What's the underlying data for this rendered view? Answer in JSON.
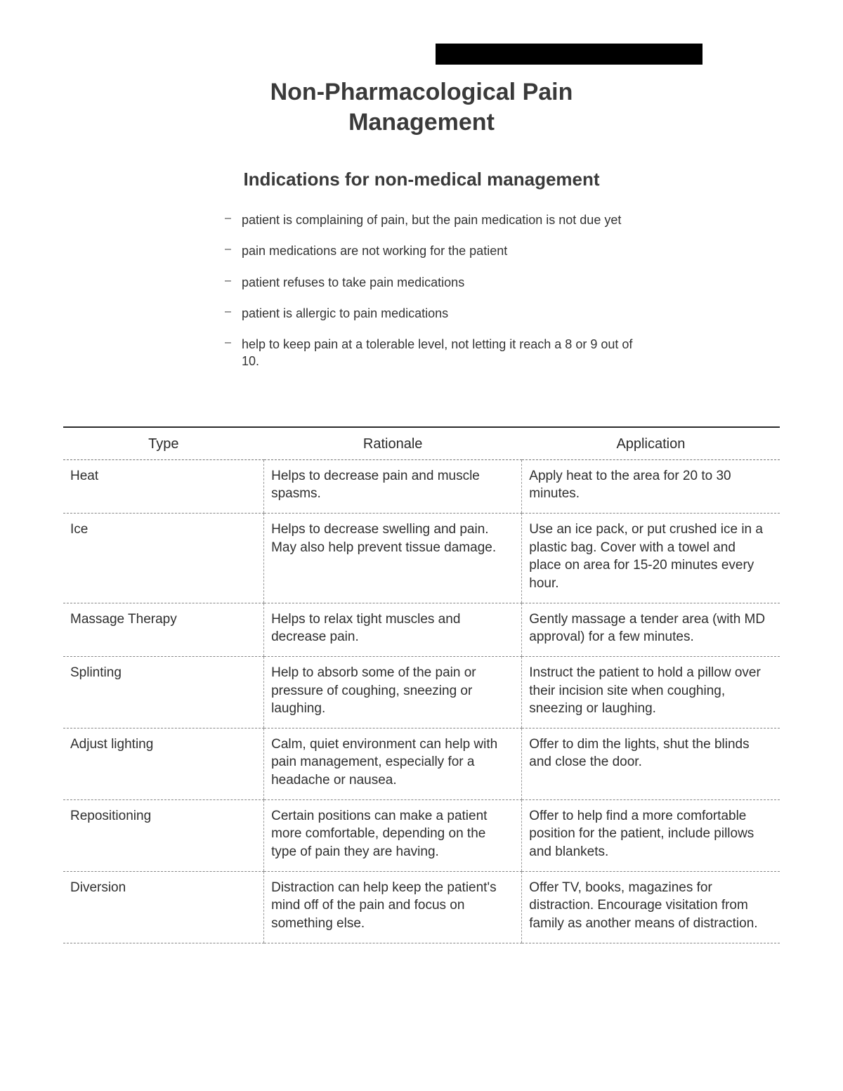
{
  "title_line1": "Non-Pharmacological Pain",
  "title_line2": "Management",
  "subtitle": "Indications for non-medical management",
  "bullets": [
    "patient is complaining of pain, but the pain medication is not due yet",
    "pain medications are not working for the patient",
    "patient refuses to take pain medications",
    "patient is allergic to pain medications",
    "help to keep pain at a tolerable level, not letting it reach a 8 or 9 out of 10."
  ],
  "table": {
    "columns": [
      "Type",
      "Rationale",
      "Application"
    ],
    "rows": [
      {
        "type": "Heat",
        "rationale": "Helps to decrease pain and muscle spasms.",
        "application": "Apply heat to the area for 20 to 30 minutes."
      },
      {
        "type": "Ice",
        "rationale": "Helps to decrease swelling and pain. May also help prevent tissue damage.",
        "application": "Use an ice pack, or put crushed ice in a plastic bag. Cover with a towel and place on area for 15-20 minutes every hour."
      },
      {
        "type": "Massage Therapy",
        "rationale": "Helps to relax tight muscles and decrease pain.",
        "application": "Gently massage a tender area (with MD approval) for a few minutes."
      },
      {
        "type": "Splinting",
        "rationale": "Help to absorb some of the pain or pressure of coughing, sneezing or laughing.",
        "application": "Instruct the patient to hold a pillow over their incision site when coughing, sneezing or laughing."
      },
      {
        "type": "Adjust lighting",
        "rationale": "Calm, quiet environment can help with pain management, especially for a headache or nausea.",
        "application": "Offer to dim the lights, shut the blinds and close the door."
      },
      {
        "type": "Repositioning",
        "rationale": "Certain positions can make a patient more comfortable, depending on the type of pain they are having.",
        "application": "Offer to help find a more comfortable position for the patient, include pillows and blankets."
      },
      {
        "type": "Diversion",
        "rationale": "Distraction can help keep the patient's mind off of the pain and focus on something else.",
        "application": "Offer TV, books, magazines for distraction. Encourage visitation from family as another means of distraction."
      }
    ]
  },
  "styling": {
    "page_bg": "#ffffff",
    "text_color": "#2a2a2a",
    "title_fontsize": 34,
    "subtitle_fontsize": 26,
    "body_fontsize": 19,
    "table_border_color": "#2a2a2a",
    "dash_color": "#888888",
    "redaction_color": "#000000"
  }
}
